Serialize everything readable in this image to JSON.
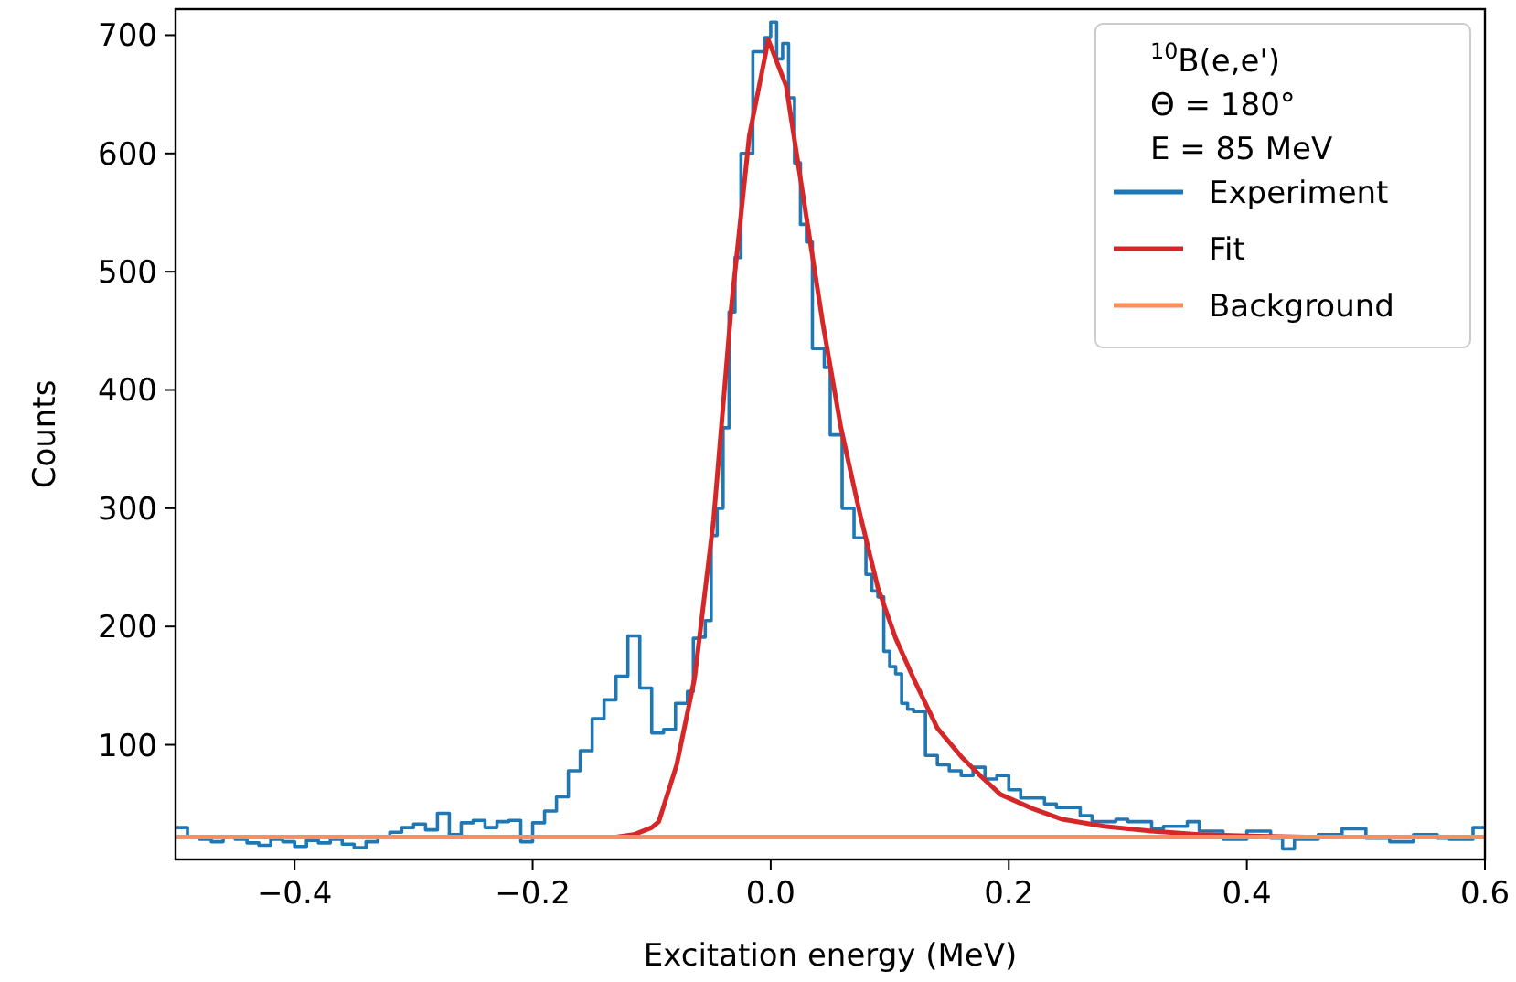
{
  "chart_data": {
    "type": "line",
    "xlabel": "Excitation energy (MeV)",
    "ylabel": "Counts",
    "legend_title": "$^{10}$B(e,e')\nΘ = 180°\nE = 85 MeV",
    "legend": "top right",
    "grid": false,
    "xlim": [
      -0.5,
      0.6
    ],
    "xticks": [
      {
        "value": -0.4,
        "label": "−0.4"
      },
      {
        "value": -0.2,
        "label": "−0.2"
      },
      {
        "value": 0,
        "label": "0.0"
      },
      0.2,
      0.4,
      0.6
    ],
    "ylim": [
      3,
      722
    ],
    "yticks": [
      100,
      200,
      300,
      400,
      500,
      600,
      700
    ],
    "series": [
      {
        "name": "Experiment",
        "type": "step",
        "color": "#1f77b4",
        "x": [
          -0.5,
          -0.49,
          -0.48,
          -0.47,
          -0.46,
          -0.45,
          -0.44,
          -0.43,
          -0.42,
          -0.41,
          -0.4,
          -0.39,
          -0.38,
          -0.37,
          -0.36,
          -0.35,
          -0.34,
          -0.33,
          -0.32,
          -0.31,
          -0.3,
          -0.29,
          -0.28,
          -0.27,
          -0.26,
          -0.25,
          -0.24,
          -0.23,
          -0.22,
          -0.21,
          -0.2,
          -0.19,
          -0.18,
          -0.17,
          -0.16,
          -0.15,
          -0.14,
          -0.13,
          -0.12,
          -0.11,
          -0.1,
          -0.09,
          -0.08,
          -0.07,
          -0.065,
          -0.06,
          -0.055,
          -0.05,
          -0.045,
          -0.04,
          -0.035,
          -0.03,
          -0.025,
          -0.02,
          -0.015,
          -0.01,
          -0.005,
          0,
          0.005,
          0.01,
          0.015,
          0.02,
          0.025,
          0.03,
          0.035,
          0.04,
          0.045,
          0.05,
          0.055,
          0.06,
          0.065,
          0.07,
          0.075,
          0.08,
          0.085,
          0.09,
          0.095,
          0.1,
          0.105,
          0.11,
          0.115,
          0.12,
          0.13,
          0.14,
          0.15,
          0.16,
          0.17,
          0.18,
          0.19,
          0.2,
          0.21,
          0.22,
          0.23,
          0.24,
          0.25,
          0.26,
          0.27,
          0.28,
          0.29,
          0.3,
          0.31,
          0.32,
          0.33,
          0.34,
          0.35,
          0.36,
          0.37,
          0.38,
          0.39,
          0.4,
          0.41,
          0.42,
          0.43,
          0.44,
          0.45,
          0.46,
          0.47,
          0.48,
          0.49,
          0.5,
          0.51,
          0.52,
          0.53,
          0.54,
          0.55,
          0.56,
          0.57,
          0.58,
          0.59,
          0.6
        ],
        "values": [
          30,
          22,
          20,
          18,
          22,
          20,
          17,
          15,
          20,
          18,
          14,
          19,
          17,
          20,
          16,
          13,
          18,
          22,
          26,
          30,
          33,
          28,
          42,
          24,
          34,
          36,
          30,
          35,
          36,
          18,
          34,
          44,
          56,
          78,
          95,
          122,
          138,
          158,
          192,
          148,
          110,
          113,
          135,
          145,
          190,
          191,
          205,
          277,
          300,
          368,
          466,
          512,
          600,
          600,
          686,
          686,
          698,
          711,
          680,
          693,
          647,
          592,
          540,
          525,
          435,
          435,
          419,
          362,
          362,
          300,
          300,
          275,
          275,
          244,
          230,
          225,
          179,
          166,
          160,
          135,
          130,
          128,
          91,
          83,
          78,
          74,
          81,
          71,
          74,
          62,
          55,
          55,
          50,
          47,
          47,
          40,
          35,
          35,
          37,
          35,
          35,
          29,
          31,
          31,
          35,
          27,
          27,
          20,
          20,
          27,
          27,
          21,
          12,
          20,
          20,
          24,
          24,
          29,
          29,
          21,
          21,
          18,
          18,
          24,
          24,
          21,
          20,
          20,
          30,
          30
        ]
      },
      {
        "name": "Fit",
        "type": "line",
        "color": "#d62728",
        "x": [
          -0.13,
          -0.115,
          -0.1,
          -0.094,
          -0.079,
          -0.064,
          -0.048,
          -0.033,
          -0.018,
          -0.002,
          0.013,
          0.028,
          0.044,
          0.059,
          0.075,
          0.09,
          0.105,
          0.12,
          0.14,
          0.16,
          0.177,
          0.193,
          0.22,
          0.245,
          0.28,
          0.32,
          0.36,
          0.4,
          0.45
        ],
        "values": [
          22,
          24,
          30,
          35,
          83,
          156,
          290,
          471,
          615,
          696,
          657,
          559,
          455,
          368,
          295,
          233,
          190,
          156,
          114,
          90,
          73,
          58,
          46,
          37,
          31,
          27,
          24,
          23,
          22
        ]
      },
      {
        "name": "Background",
        "type": "line",
        "color": "#fb8e5a",
        "x": [
          -0.5,
          0.6
        ],
        "values": [
          22,
          22
        ]
      }
    ]
  }
}
